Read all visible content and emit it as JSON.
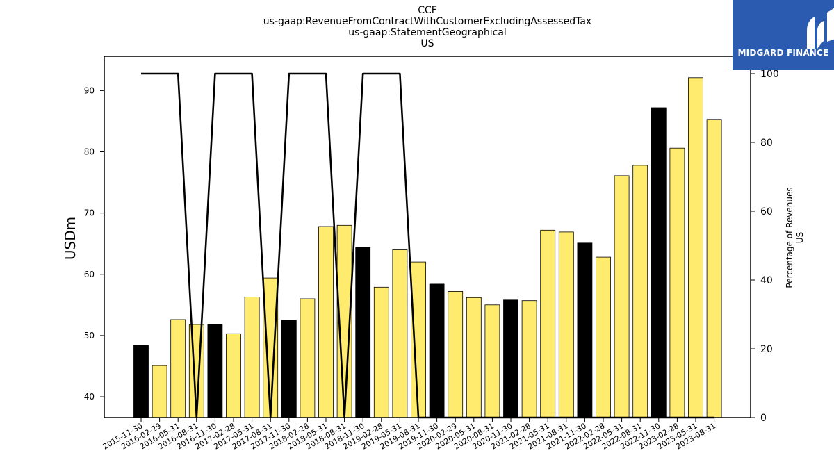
{
  "chart_data": {
    "type": "bar",
    "title_lines": [
      "CCF",
      "us-gaap:RevenueFromContractWithCustomerExcludingAssessedTax",
      "us-gaap:StatementGeographical",
      "US"
    ],
    "ylabel": "USDm",
    "y2label_lines": [
      "Percentage of Revenues",
      "US"
    ],
    "ylim": [
      36.6,
      95.6
    ],
    "y2lim": [
      0,
      100
    ],
    "yticks": [
      40,
      50,
      60,
      70,
      80,
      90
    ],
    "y2ticks": [
      0,
      20,
      40,
      60,
      80,
      100
    ],
    "categories": [
      "2015-11-30",
      "2016-02-29",
      "2016-05-31",
      "2016-08-31",
      "2016-11-30",
      "2017-02-28",
      "2017-05-31",
      "2017-08-31",
      "2017-11-30",
      "2018-02-28",
      "2018-05-31",
      "2018-08-31",
      "2018-11-30",
      "2019-02-28",
      "2019-05-31",
      "2019-08-31",
      "2019-11-30",
      "2020-02-29",
      "2020-05-31",
      "2020-08-31",
      "2020-11-30",
      "2021-02-28",
      "2021-05-31",
      "2021-08-31",
      "2021-11-30",
      "2022-02-28",
      "2022-05-31",
      "2022-08-31",
      "2022-11-30",
      "2023-02-28",
      "2023-05-31",
      "2023-08-31"
    ],
    "values": [
      48.4,
      45.1,
      52.6,
      51.8,
      51.8,
      50.3,
      56.3,
      59.4,
      52.5,
      56.0,
      67.8,
      68.0,
      64.4,
      57.9,
      64.0,
      62.0,
      58.4,
      57.2,
      56.2,
      55.0,
      55.8,
      55.7,
      67.2,
      66.9,
      65.1,
      62.8,
      76.1,
      77.8,
      87.2,
      80.6,
      92.1,
      85.3
    ],
    "highlight": [
      true,
      false,
      false,
      false,
      true,
      false,
      false,
      false,
      true,
      false,
      false,
      false,
      true,
      false,
      false,
      false,
      true,
      false,
      false,
      false,
      true,
      false,
      false,
      false,
      true,
      false,
      false,
      false,
      true,
      false,
      false,
      false
    ],
    "line_values": [
      100,
      100,
      100,
      0,
      100,
      100,
      100,
      0,
      100,
      100,
      100,
      0,
      100,
      100,
      100,
      0,
      0,
      0,
      0,
      0,
      0,
      0,
      0,
      0,
      0,
      0,
      0,
      0,
      0,
      0,
      0,
      0
    ],
    "colors": {
      "bar": "#ffec6e",
      "bar_highlight": "#000000",
      "line": "#000000"
    }
  },
  "logo": {
    "text": "MIDGARD FINANCE"
  }
}
